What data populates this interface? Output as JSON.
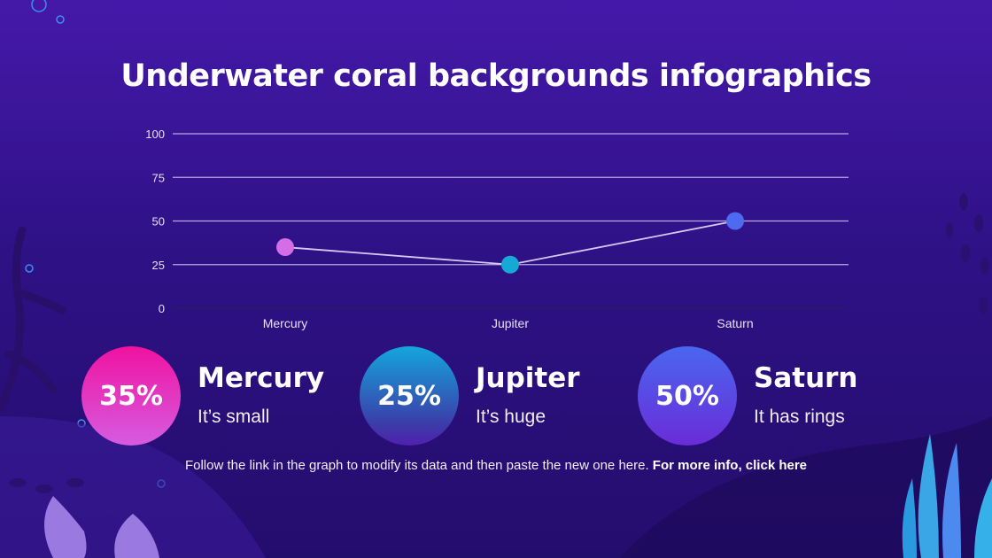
{
  "title": "Underwater coral backgrounds infographics",
  "chart_data": {
    "type": "line",
    "categories": [
      "Mercury",
      "Jupiter",
      "Saturn"
    ],
    "values": [
      35,
      25,
      50
    ],
    "point_colors": [
      "#d56ee6",
      "#17a9d6",
      "#4d6af0"
    ],
    "ylim": [
      0,
      100
    ],
    "yticks": [
      0,
      25,
      50,
      75,
      100
    ],
    "grid": true,
    "title": "",
    "xlabel": "",
    "ylabel": ""
  },
  "cards": [
    {
      "percent": "35%",
      "name": "Mercury",
      "desc": "It’s small"
    },
    {
      "percent": "25%",
      "name": "Jupiter",
      "desc": "It’s huge"
    },
    {
      "percent": "50%",
      "name": "Saturn",
      "desc": "It has rings"
    }
  ],
  "footer": {
    "text": "Follow the link in the graph to modify its data and then paste the new one here. ",
    "link": "For more info, click here"
  }
}
